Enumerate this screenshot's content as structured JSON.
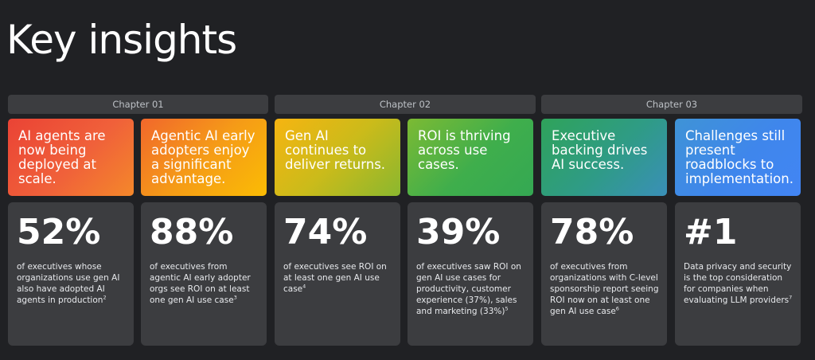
{
  "title": "Key insights",
  "chapters": [
    "Chapter 01",
    "Chapter 02",
    "Chapter 03"
  ],
  "cards": [
    {
      "headline": "AI agents are now being deployed at scale.",
      "stat": "52%",
      "description": "of executives whose organizations use gen AI also have adopted AI agents in production",
      "footnote": "2"
    },
    {
      "headline": "Agentic AI early adopters enjoy a significant advantage.",
      "stat": "88%",
      "description": "of executives from agentic AI early adopter orgs see ROI on at least one gen AI use case",
      "footnote": "3"
    },
    {
      "headline": "Gen AI continues to deliver returns.",
      "stat": "74%",
      "description": "of executives see ROI on at least one gen AI use case",
      "footnote": "4"
    },
    {
      "headline": "ROI is thriving across use cases.",
      "stat": "39%",
      "description": "of executives saw ROI on gen AI use cases for productivity, customer experience (37%), sales and marketing (33%)",
      "footnote": "5"
    },
    {
      "headline": "Executive backing drives AI success.",
      "stat": "78%",
      "description": "of executives from organizations with C-level sponsorship report seeing ROI now on at least one gen AI use case",
      "footnote": "6"
    },
    {
      "headline": "Challenges still present roadblocks to implementation.",
      "stat": "#1",
      "description": "Data privacy and security is the top consideration for companies when evaluating LLM providers",
      "footnote": "7"
    }
  ]
}
